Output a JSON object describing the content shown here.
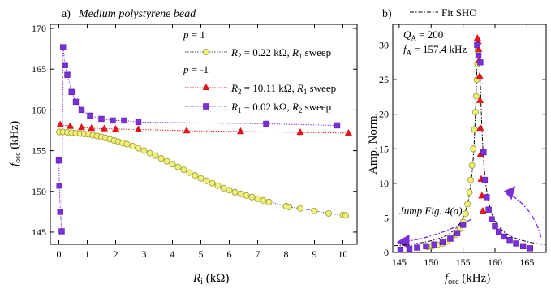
{
  "chart_data": [
    {
      "type": "scatter",
      "panel_label": "a)",
      "title": "Medium polystyrene bead",
      "xlabel": "R",
      "xlabel_sub": "i",
      "xlabel_unit": " (kΩ)",
      "ylabel": "f",
      "ylabel_sub": "osc",
      "ylabel_unit": " (kHz)",
      "xlim": [
        -0.3,
        10.5
      ],
      "ylim": [
        143.5,
        170.5
      ],
      "xticks": [
        0,
        1,
        2,
        3,
        4,
        5,
        6,
        7,
        8,
        9,
        10
      ],
      "yticks": [
        145,
        150,
        155,
        160,
        165,
        170
      ],
      "grid": false,
      "legend_position": "top-right",
      "legend_groups": [
        {
          "heading": "p = 1",
          "heading_var": "p",
          "heading_rest": " = 1",
          "series_index": [
            0
          ]
        },
        {
          "heading": "p = -1",
          "heading_var": "p",
          "heading_rest": " = -1",
          "series_index": [
            1,
            2
          ]
        }
      ],
      "series": [
        {
          "name": "R2 = 0.22 kΩ, R1 sweep",
          "label_parts": {
            "var1": "R",
            "sub1": "2",
            "mid": " = 0.22 kΩ, ",
            "var2": "R",
            "sub2": "1",
            "tail": " sweep"
          },
          "marker": "circle",
          "fill": "#f0f07a",
          "stroke": "#9a9a30",
          "line_color": "#444444",
          "x": [
            0.02,
            0.15,
            0.3,
            0.45,
            0.6,
            0.75,
            0.9,
            1.05,
            1.2,
            1.35,
            1.5,
            1.65,
            1.8,
            1.95,
            2.1,
            2.25,
            2.4,
            2.6,
            2.8,
            3.0,
            3.2,
            3.4,
            3.6,
            3.8,
            4.0,
            4.2,
            4.4,
            4.6,
            4.8,
            5.0,
            5.2,
            5.4,
            5.6,
            5.8,
            6.0,
            6.2,
            6.4,
            6.6,
            6.8,
            7.0,
            7.2,
            7.4,
            8.0,
            8.1,
            8.5,
            9.0,
            9.5,
            10.0,
            10.1
          ],
          "y": [
            157.3,
            157.3,
            157.25,
            157.2,
            157.15,
            157.1,
            157.05,
            157.0,
            156.9,
            156.8,
            156.7,
            156.55,
            156.4,
            156.25,
            156.1,
            155.95,
            155.8,
            155.55,
            155.3,
            155.0,
            154.7,
            154.4,
            154.05,
            153.7,
            153.35,
            153.0,
            152.65,
            152.3,
            151.95,
            151.6,
            151.3,
            151.0,
            150.7,
            150.4,
            150.15,
            149.9,
            149.7,
            149.5,
            149.3,
            149.1,
            148.9,
            148.7,
            148.2,
            148.1,
            147.9,
            147.6,
            147.3,
            147.1,
            147.05
          ]
        },
        {
          "name": "R2 = 10.11 kΩ, R1 sweep",
          "label_parts": {
            "var1": "R",
            "sub1": "2",
            "mid": " = 10.11 kΩ, ",
            "var2": "R",
            "sub2": "1",
            "tail": " sweep"
          },
          "marker": "triangle",
          "fill": "#e0161b",
          "stroke": "#e0161b",
          "line_color": "#e0161b",
          "x": [
            0.05,
            0.4,
            0.8,
            1.15,
            1.6,
            2.0,
            2.8,
            4.5,
            6.4,
            8.5,
            10.2
          ],
          "y": [
            158.2,
            158.0,
            157.85,
            157.75,
            157.7,
            157.65,
            157.6,
            157.45,
            157.35,
            157.25,
            157.15
          ]
        },
        {
          "name": "R1 = 0.02 kΩ, R2 sweep",
          "label_parts": {
            "var1": "R",
            "sub1": "1",
            "mid": " = 0.02 kΩ, ",
            "var2": "R",
            "sub2": "2",
            "tail": " sweep"
          },
          "marker": "square",
          "fill": "#7b2fd6",
          "stroke": "#5a1fb0",
          "line_color": "#7b2fd6",
          "x": [
            0.0,
            0.02,
            0.05,
            0.1,
            0.15,
            0.22,
            0.3,
            0.45,
            0.6,
            0.8,
            1.1,
            1.5,
            1.9,
            2.3,
            2.8,
            7.3,
            9.8
          ],
          "y": [
            153.8,
            150.7,
            147.5,
            145.1,
            167.7,
            165.5,
            164.3,
            162.2,
            161.0,
            160.0,
            159.3,
            158.9,
            158.7,
            158.7,
            158.5,
            158.3,
            158.1
          ]
        }
      ]
    },
    {
      "type": "scatter",
      "panel_label": "b)",
      "xlabel": "f",
      "xlabel_sub": "osc",
      "xlabel_unit": " (kHz)",
      "ylabel": "Amp. Norm.",
      "xlim": [
        144,
        168
      ],
      "ylim": [
        0,
        33
      ],
      "xticks": [
        145,
        150,
        155,
        160,
        165
      ],
      "yticks": [
        0,
        5,
        10,
        15,
        20,
        25,
        30
      ],
      "grid": false,
      "legend_position": "top",
      "fit_label": "Fit SHO",
      "annotations": {
        "q_var": "Q",
        "q_sub": "A",
        "q_rest": " = 200",
        "f_var": "f",
        "f_sub": "A",
        "f_rest": " = 157.4 kHz",
        "jump_text": "Jump Fig. 4(a)"
      },
      "fit_params": {
        "QA": 200,
        "fA_kHz": 157.4,
        "peak": 31
      },
      "series": [
        {
          "marker": "circle",
          "fill": "#f0f07a",
          "stroke": "#9a9a30",
          "x": [
            149.5,
            150.2,
            151.0,
            151.8,
            152.5,
            153.2,
            153.9,
            154.5,
            155.0,
            155.4,
            155.7,
            156.0,
            156.2,
            156.4,
            156.6,
            156.8,
            156.95,
            157.05,
            157.15,
            157.25,
            157.3
          ],
          "y": [
            0.8,
            0.9,
            1.1,
            1.3,
            1.6,
            2.0,
            2.6,
            3.4,
            4.4,
            5.6,
            7.0,
            8.7,
            10.5,
            12.6,
            15.0,
            17.8,
            20.3,
            22.6,
            25.0,
            27.3,
            29.2
          ]
        },
        {
          "marker": "triangle",
          "fill": "#e0161b",
          "stroke": "#e0161b",
          "x": [
            157.25,
            157.35,
            157.45,
            157.55,
            157.6,
            157.65,
            157.7,
            157.75,
            157.85,
            157.95,
            158.1
          ],
          "y": [
            31.0,
            30.5,
            29.4,
            27.8,
            25.5,
            22.0,
            18.0,
            14.2,
            10.6,
            8.2,
            6.0
          ]
        },
        {
          "marker": "square",
          "fill": "#7b2fd6",
          "stroke": "#5a1fb0",
          "x": [
            145.2,
            146.6,
            147.8,
            149.2,
            150.5,
            151.8,
            153.0,
            154.1,
            155.0,
            157.2,
            157.4,
            157.7,
            158.2,
            158.4,
            158.7,
            159.0,
            159.5,
            160.0,
            160.6,
            161.4,
            162.3,
            163.3,
            164.4,
            165.5
          ],
          "y": [
            0.4,
            0.55,
            0.7,
            0.9,
            1.15,
            1.5,
            2.0,
            2.8,
            4.0,
            30.0,
            28.5,
            27.5,
            14.5,
            10.5,
            8.0,
            6.2,
            4.8,
            3.8,
            3.0,
            2.3,
            1.8,
            1.3,
            0.9,
            0.6
          ]
        }
      ]
    }
  ]
}
